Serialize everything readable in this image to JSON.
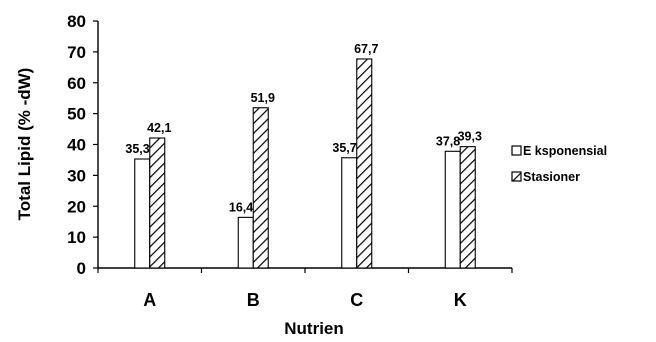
{
  "chart_data": {
    "type": "bar",
    "title": "",
    "xlabel": "Nutrien",
    "ylabel": "Total Lipid (% -dW)",
    "categories": [
      "A",
      "B",
      "C",
      "K"
    ],
    "series": [
      {
        "name": "E ksponensial",
        "values": [
          35.3,
          16.4,
          35.7,
          37.8
        ],
        "labels": [
          "35,3",
          "16,4",
          "35,7",
          "37,8"
        ],
        "fill": "#ffffff",
        "pattern": "none"
      },
      {
        "name": "Stasioner",
        "values": [
          42.1,
          51.9,
          67.7,
          39.3
        ],
        "labels": [
          "42,1",
          "51,9",
          "67,7",
          "39,3"
        ],
        "fill": "#ffffff",
        "pattern": "diagonal-hatch"
      }
    ],
    "ylim": [
      0,
      80
    ],
    "yticks": [
      0,
      10,
      20,
      30,
      40,
      50,
      60,
      70,
      80
    ],
    "ytick_labels": [
      "0",
      "10",
      "20",
      "30",
      "40",
      "50",
      "60",
      "70",
      "80"
    ],
    "grid": false,
    "legend_position": "right",
    "colors": {
      "axis": "#000000",
      "bar_fill": "#ffffff",
      "bar_edge": "#000000"
    }
  }
}
